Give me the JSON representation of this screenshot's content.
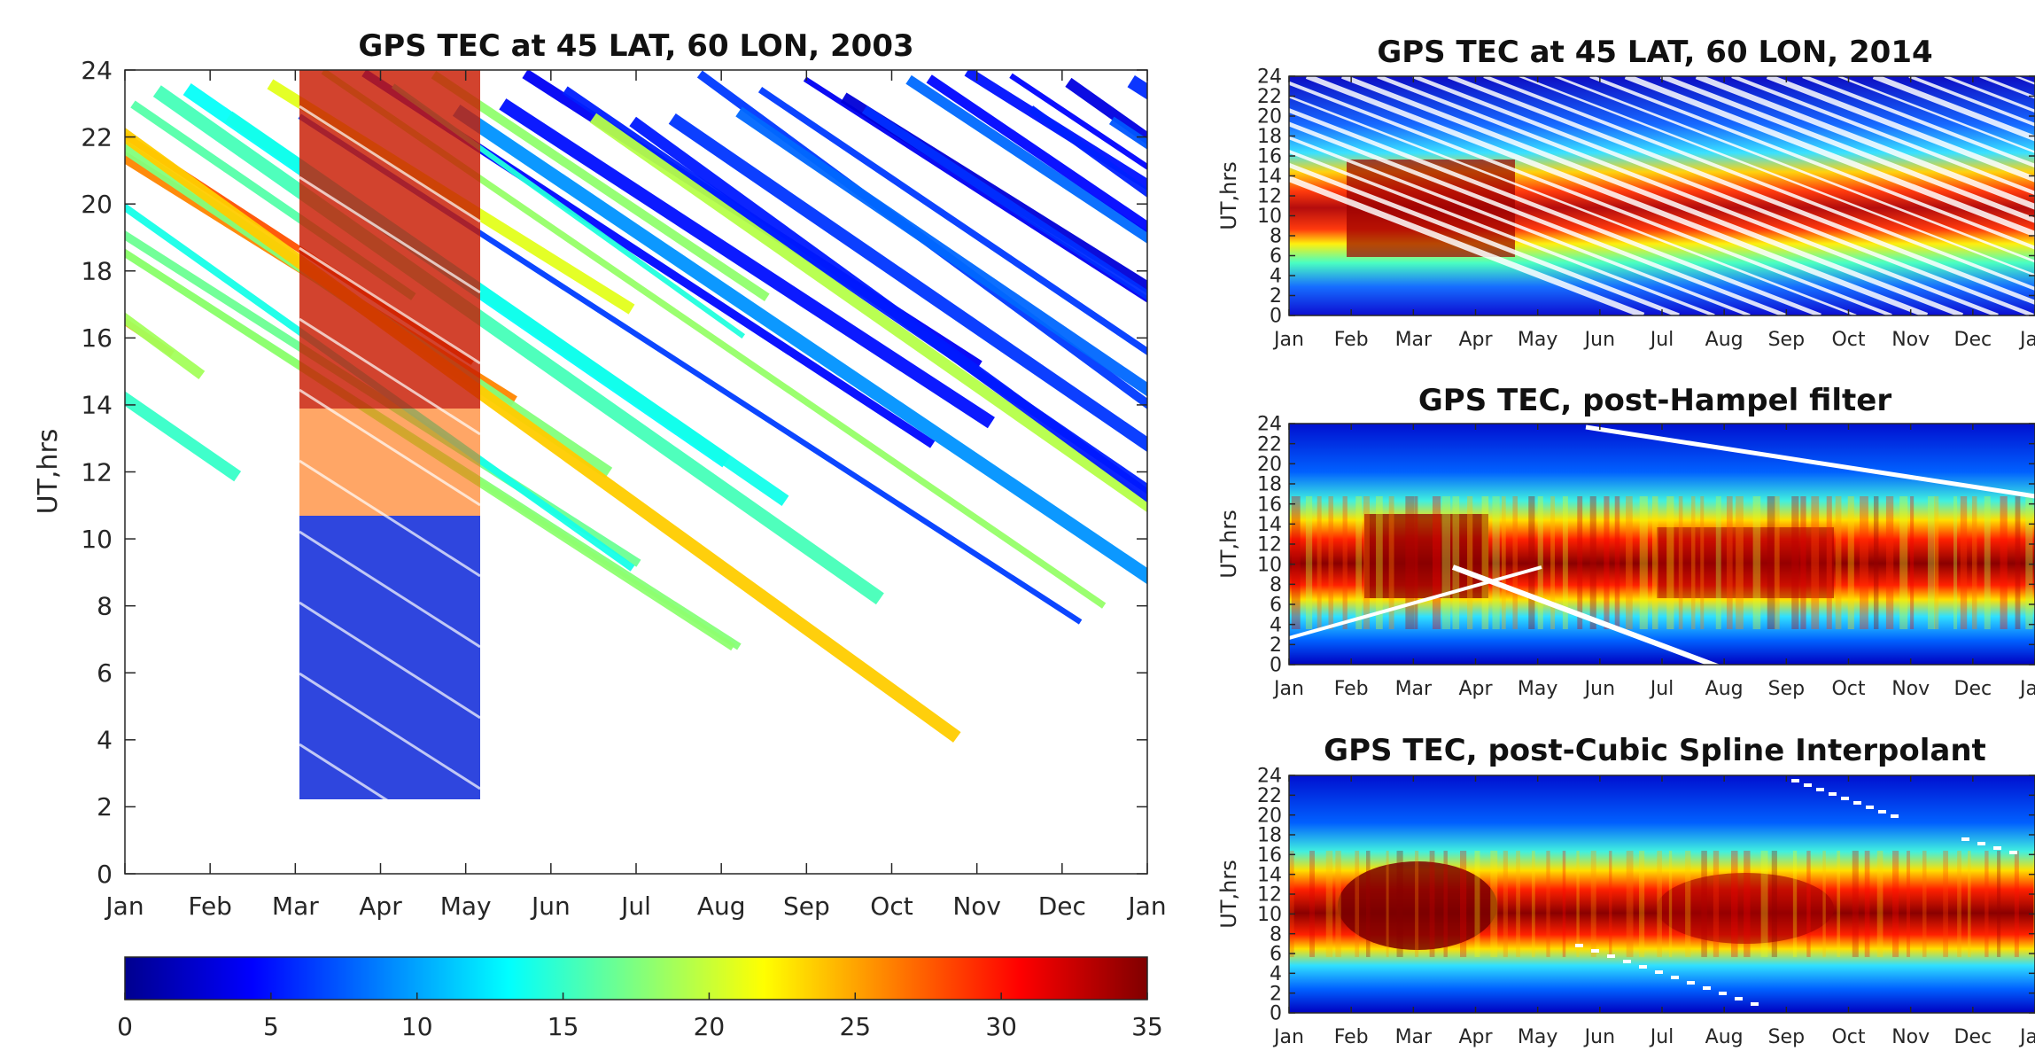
{
  "chart_data": [
    {
      "type": "heatmap",
      "title": "GPS TEC at 45 LAT, 60 LON, 2003",
      "xlabel": "",
      "ylabel": "UT,hrs",
      "x_tick_labels": [
        "Jan",
        "Feb",
        "Mar",
        "Apr",
        "May",
        "Jun",
        "Jul",
        "Aug",
        "Sep",
        "Oct",
        "Nov",
        "Dec",
        "Jan"
      ],
      "y_ticks": [
        0,
        2,
        4,
        6,
        8,
        10,
        12,
        14,
        16,
        18,
        20,
        22,
        24
      ],
      "ylim": [
        0,
        24
      ],
      "colorbar": {
        "ticks": [
          0,
          5,
          10,
          15,
          20,
          25,
          30,
          35
        ],
        "range": [
          0,
          35
        ],
        "colormap": "jet"
      },
      "description": "Sparse diagonal satellite-pass streaks; dense high TEC (30-35) from early Mar to early May above 12 UT, low TEC (~5) below 9 UT in same period."
    },
    {
      "type": "heatmap",
      "title": "GPS TEC at 45 LAT, 60 LON, 2014",
      "ylabel": "UT,hrs",
      "x_tick_labels": [
        "Jan",
        "Feb",
        "Mar",
        "Apr",
        "May",
        "Jun",
        "Jul",
        "Aug",
        "Sep",
        "Oct",
        "Nov",
        "Dec",
        "Jan"
      ],
      "y_ticks": [
        0,
        2,
        4,
        6,
        8,
        10,
        12,
        14,
        16,
        18,
        20,
        22,
        24
      ],
      "ylim": [
        0,
        24
      ]
    },
    {
      "type": "heatmap",
      "title": "GPS TEC, post-Hampel filter",
      "ylabel": "UT,hrs",
      "x_tick_labels": [
        "Jan",
        "Feb",
        "Mar",
        "Apr",
        "May",
        "Jun",
        "Jul",
        "Aug",
        "Sep",
        "Oct",
        "Nov",
        "Dec",
        "Jan"
      ],
      "y_ticks": [
        0,
        2,
        4,
        6,
        8,
        10,
        12,
        14,
        16,
        18,
        20,
        22,
        24
      ],
      "ylim": [
        0,
        24
      ]
    },
    {
      "type": "heatmap",
      "title": "GPS TEC, post-Cubic Spline Interpolant",
      "ylabel": "UT,hrs",
      "x_tick_labels": [
        "Jan",
        "Feb",
        "Mar",
        "Apr",
        "May",
        "Jun",
        "Jul",
        "Aug",
        "Sep",
        "Oct",
        "Nov",
        "Dec",
        "Jan"
      ],
      "y_ticks": [
        0,
        2,
        4,
        6,
        8,
        10,
        12,
        14,
        16,
        18,
        20,
        22,
        24
      ],
      "ylim": [
        0,
        24
      ]
    }
  ]
}
